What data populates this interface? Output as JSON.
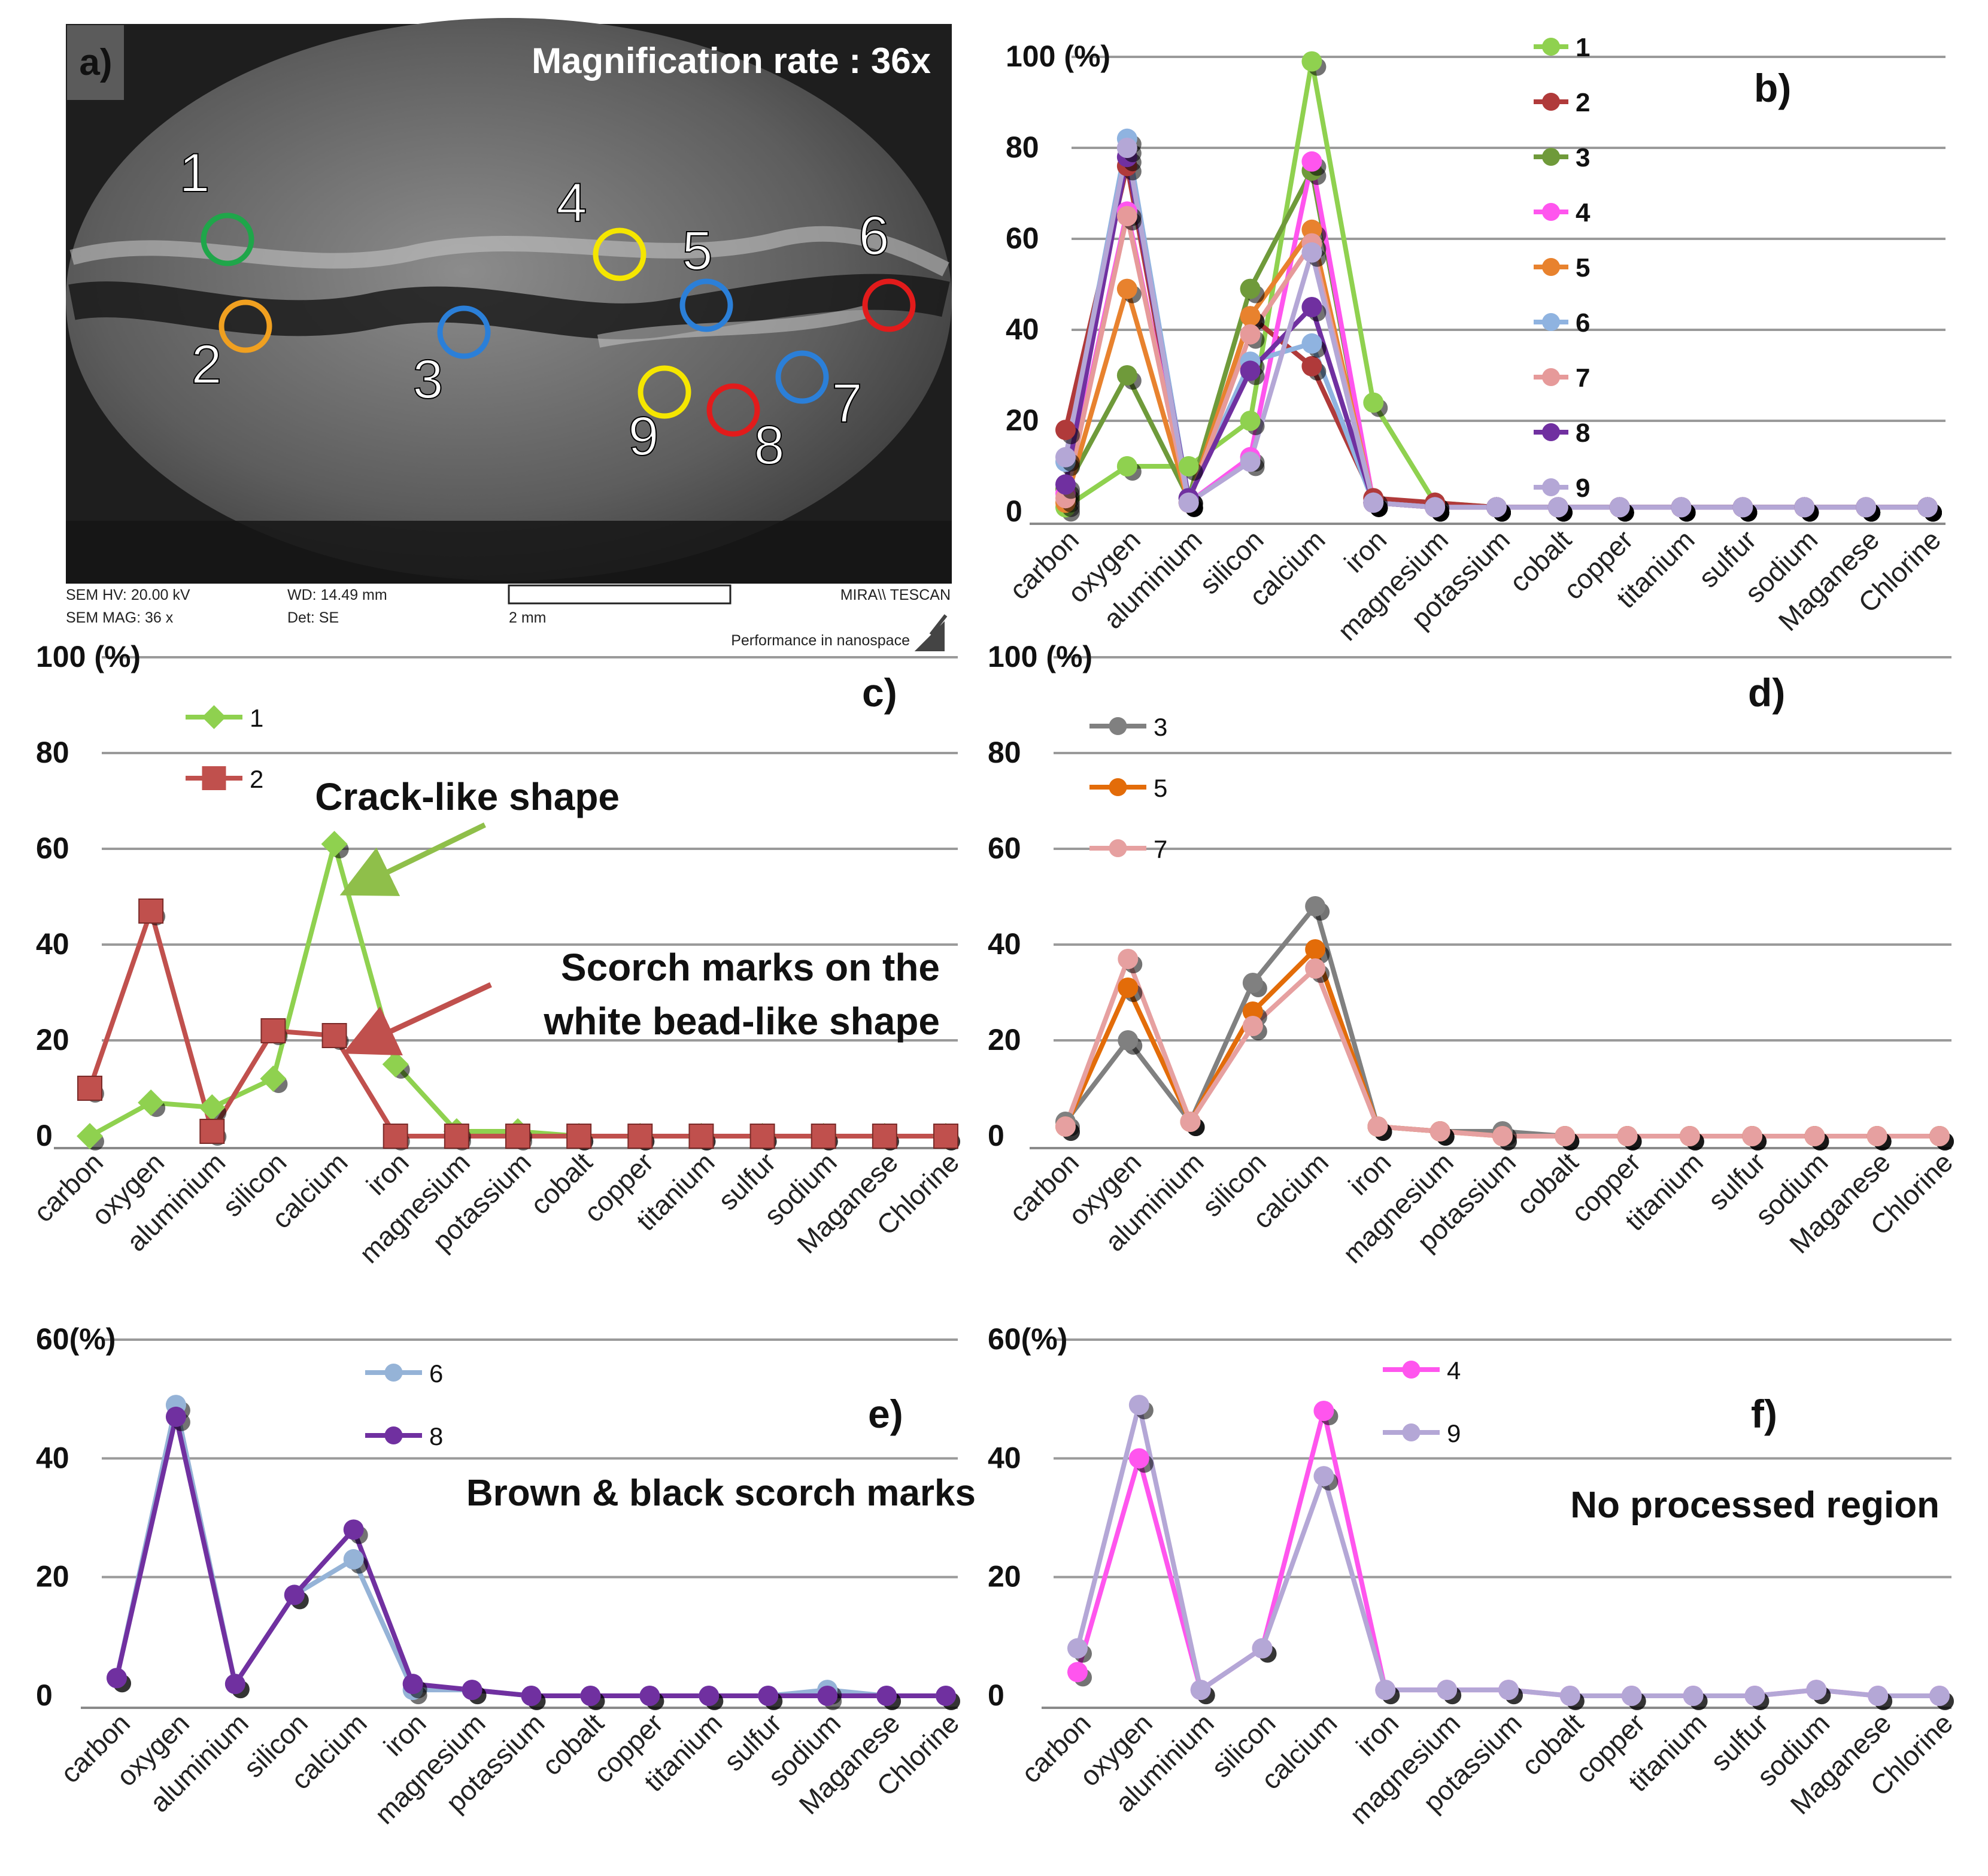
{
  "sem_panel": {
    "panel_label": "a)",
    "magnification": "Magnification rate : 36x",
    "markers": [
      {
        "label": "1",
        "color": "#1fa64a"
      },
      {
        "label": "2",
        "color": "#f0a020"
      },
      {
        "label": "3",
        "color": "#2b7fd8"
      },
      {
        "label": "4",
        "color": "#f5e600"
      },
      {
        "label": "5",
        "color": "#2b7fd8"
      },
      {
        "label": "6",
        "color": "#e21b1b"
      },
      {
        "label": "7",
        "color": "#2b7fd8"
      },
      {
        "label": "8",
        "color": "#e21b1b"
      },
      {
        "label": "9",
        "color": "#f5e600"
      }
    ],
    "info": {
      "hv": "SEM HV: 20.00 kV",
      "mag": "SEM MAG: 36 x",
      "wd": "WD: 14.49 mm",
      "det": "Det: SE",
      "scale": "2 mm",
      "brand": "MIRA\\\\ TESCAN",
      "tagline": "Performance in nanospace"
    }
  },
  "chart_data": [
    {
      "id": "b",
      "panel_label": "b)",
      "type": "line",
      "ymax": 100,
      "yticks": [
        "0",
        "20",
        "40",
        "60",
        "80",
        "100  (%)"
      ],
      "categories": [
        "carbon",
        "oxygen",
        "aluminium",
        "silicon",
        "calcium",
        "iron",
        "magnesium",
        "potassium",
        "cobalt",
        "copper",
        "titanium",
        "sulfur",
        "sodium",
        "Maganese",
        "Chlorine"
      ],
      "series": [
        {
          "name": "1",
          "color": "#8fd14f",
          "marker": "circle",
          "values": [
            1,
            10,
            10,
            20,
            99,
            24,
            2,
            1,
            1,
            1,
            1,
            1,
            1,
            1,
            1
          ]
        },
        {
          "name": "2",
          "color": "#b03a3a",
          "marker": "circle",
          "values": [
            18,
            76,
            2,
            43,
            32,
            3,
            2,
            1,
            1,
            1,
            1,
            1,
            1,
            1,
            1
          ]
        },
        {
          "name": "3",
          "color": "#6f9a3a",
          "marker": "circle",
          "values": [
            5,
            30,
            3,
            49,
            75,
            2,
            1,
            1,
            1,
            1,
            1,
            1,
            1,
            1,
            1
          ]
        },
        {
          "name": "4",
          "color": "#ff55ee",
          "marker": "circle",
          "values": [
            4,
            66,
            2,
            12,
            77,
            2,
            1,
            1,
            1,
            1,
            1,
            1,
            1,
            1,
            1
          ]
        },
        {
          "name": "5",
          "color": "#e8822e",
          "marker": "circle",
          "values": [
            2,
            49,
            2,
            43,
            62,
            2,
            1,
            1,
            1,
            1,
            1,
            1,
            1,
            1,
            1
          ]
        },
        {
          "name": "6",
          "color": "#8fb3e0",
          "marker": "circle",
          "values": [
            11,
            82,
            3,
            33,
            37,
            2,
            1,
            1,
            1,
            1,
            1,
            1,
            1,
            1,
            1
          ]
        },
        {
          "name": "7",
          "color": "#e69a9a",
          "marker": "circle",
          "values": [
            3,
            65,
            2,
            39,
            59,
            2,
            1,
            1,
            1,
            1,
            1,
            1,
            1,
            1,
            1
          ]
        },
        {
          "name": "8",
          "color": "#7030a0",
          "marker": "circle",
          "values": [
            6,
            78,
            3,
            31,
            45,
            2,
            1,
            1,
            1,
            1,
            1,
            1,
            1,
            1,
            1
          ]
        },
        {
          "name": "9",
          "color": "#b4a7d6",
          "marker": "circle",
          "values": [
            12,
            80,
            2,
            11,
            57,
            2,
            1,
            1,
            1,
            1,
            1,
            1,
            1,
            1,
            1
          ]
        }
      ]
    },
    {
      "id": "c",
      "panel_label": "c)",
      "type": "line",
      "ymax": 100,
      "yticks": [
        "0",
        "20",
        "40",
        "60",
        "80",
        "100  (%)"
      ],
      "categories": [
        "carbon",
        "oxygen",
        "aluminium",
        "silicon",
        "calcium",
        "iron",
        "magnesium",
        "potassium",
        "cobalt",
        "copper",
        "titanium",
        "sulfur",
        "sodium",
        "Maganese",
        "Chlorine"
      ],
      "series": [
        {
          "name": "1",
          "color": "#8fd14f",
          "marker": "diamond",
          "values": [
            0,
            7,
            6,
            12,
            61,
            15,
            1,
            1,
            0,
            0,
            0,
            0,
            0,
            0,
            0
          ]
        },
        {
          "name": "2",
          "color": "#c0504d",
          "marker": "square",
          "values": [
            10,
            47,
            1,
            22,
            21,
            0,
            0,
            0,
            0,
            0,
            0,
            0,
            0,
            0,
            0
          ]
        }
      ],
      "annotations": [
        {
          "text": "Crack-like shape",
          "color": "#8fbf4a"
        },
        {
          "text": "Scorch marks on the",
          "color": "#c0504d"
        },
        {
          "text": "white bead-like shape",
          "color": "#c0504d"
        }
      ]
    },
    {
      "id": "d",
      "panel_label": "d)",
      "type": "line",
      "ymax": 100,
      "yticks": [
        "0",
        "20",
        "40",
        "60",
        "80",
        "100  (%)"
      ],
      "categories": [
        "carbon",
        "oxygen",
        "aluminium",
        "silicon",
        "calcium",
        "iron",
        "magnesium",
        "potassium",
        "cobalt",
        "copper",
        "titanium",
        "sulfur",
        "sodium",
        "Maganese",
        "Chlorine"
      ],
      "series": [
        {
          "name": "3",
          "color": "#808080",
          "marker": "circle",
          "values": [
            3,
            20,
            3,
            32,
            48,
            2,
            1,
            1,
            0,
            0,
            0,
            0,
            0,
            0,
            0
          ]
        },
        {
          "name": "5",
          "color": "#e36c09",
          "marker": "circle",
          "values": [
            2,
            31,
            3,
            26,
            39,
            2,
            1,
            0,
            0,
            0,
            0,
            0,
            0,
            0,
            0
          ]
        },
        {
          "name": "7",
          "color": "#e6a0a0",
          "marker": "circle",
          "values": [
            2,
            37,
            3,
            23,
            35,
            2,
            1,
            0,
            0,
            0,
            0,
            0,
            0,
            0,
            0
          ]
        }
      ]
    },
    {
      "id": "e",
      "panel_label": "e)",
      "type": "line",
      "ymax": 60,
      "yticks": [
        "0",
        "20",
        "40",
        "60(%)"
      ],
      "categories": [
        "carbon",
        "oxygen",
        "aluminium",
        "silicon",
        "calcium",
        "iron",
        "magnesium",
        "potassium",
        "cobalt",
        "copper",
        "titanium",
        "sulfur",
        "sodium",
        "Maganese",
        "Chlorine"
      ],
      "series": [
        {
          "name": "6",
          "color": "#95b3d7",
          "marker": "circle",
          "values": [
            3,
            49,
            2,
            17,
            23,
            1,
            1,
            0,
            0,
            0,
            0,
            0,
            1,
            0,
            0
          ]
        },
        {
          "name": "8",
          "color": "#7030a0",
          "marker": "circle",
          "values": [
            3,
            47,
            2,
            17,
            28,
            2,
            1,
            0,
            0,
            0,
            0,
            0,
            0,
            0,
            0
          ]
        }
      ],
      "annotations": [
        {
          "text": "Brown & black scorch marks",
          "color": "#000000"
        }
      ]
    },
    {
      "id": "f",
      "panel_label": "f)",
      "type": "line",
      "ymax": 60,
      "yticks": [
        "0",
        "20",
        "40",
        "60(%)"
      ],
      "categories": [
        "carbon",
        "oxygen",
        "aluminium",
        "silicon",
        "calcium",
        "iron",
        "magnesium",
        "potassium",
        "cobalt",
        "copper",
        "titanium",
        "sulfur",
        "sodium",
        "Maganese",
        "Chlorine"
      ],
      "series": [
        {
          "name": "4",
          "color": "#ff55ee",
          "marker": "circle",
          "values": [
            4,
            40,
            1,
            8,
            48,
            1,
            1,
            1,
            0,
            0,
            0,
            0,
            1,
            0,
            0
          ]
        },
        {
          "name": "9",
          "color": "#b4a7d6",
          "marker": "circle",
          "values": [
            8,
            49,
            1,
            8,
            37,
            1,
            1,
            1,
            0,
            0,
            0,
            0,
            1,
            0,
            0
          ]
        }
      ],
      "annotations": [
        {
          "text": "No processed region",
          "color": "#000000"
        }
      ]
    }
  ]
}
